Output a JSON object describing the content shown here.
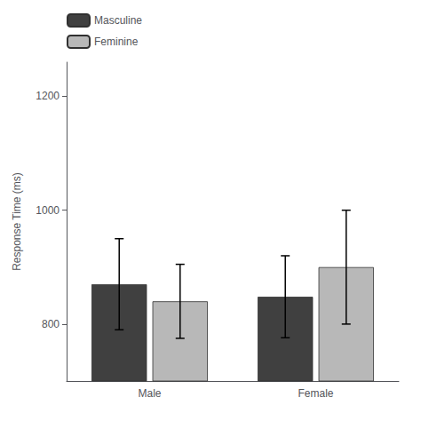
{
  "chart_data": {
    "type": "bar",
    "categories": [
      "Male",
      "Female"
    ],
    "series": [
      {
        "name": "Masculine",
        "color": "#404040",
        "values": [
          870,
          848
        ],
        "errors": [
          80,
          72
        ]
      },
      {
        "name": "Feminine",
        "color": "#b8b8b8",
        "values": [
          840,
          900
        ],
        "errors": [
          65,
          100
        ]
      }
    ],
    "ylabel": "Response Time (ms)",
    "ylim": [
      700,
      1260
    ],
    "yticks": [
      800,
      1000,
      1200
    ],
    "legend": "upper left",
    "grid": false
  }
}
